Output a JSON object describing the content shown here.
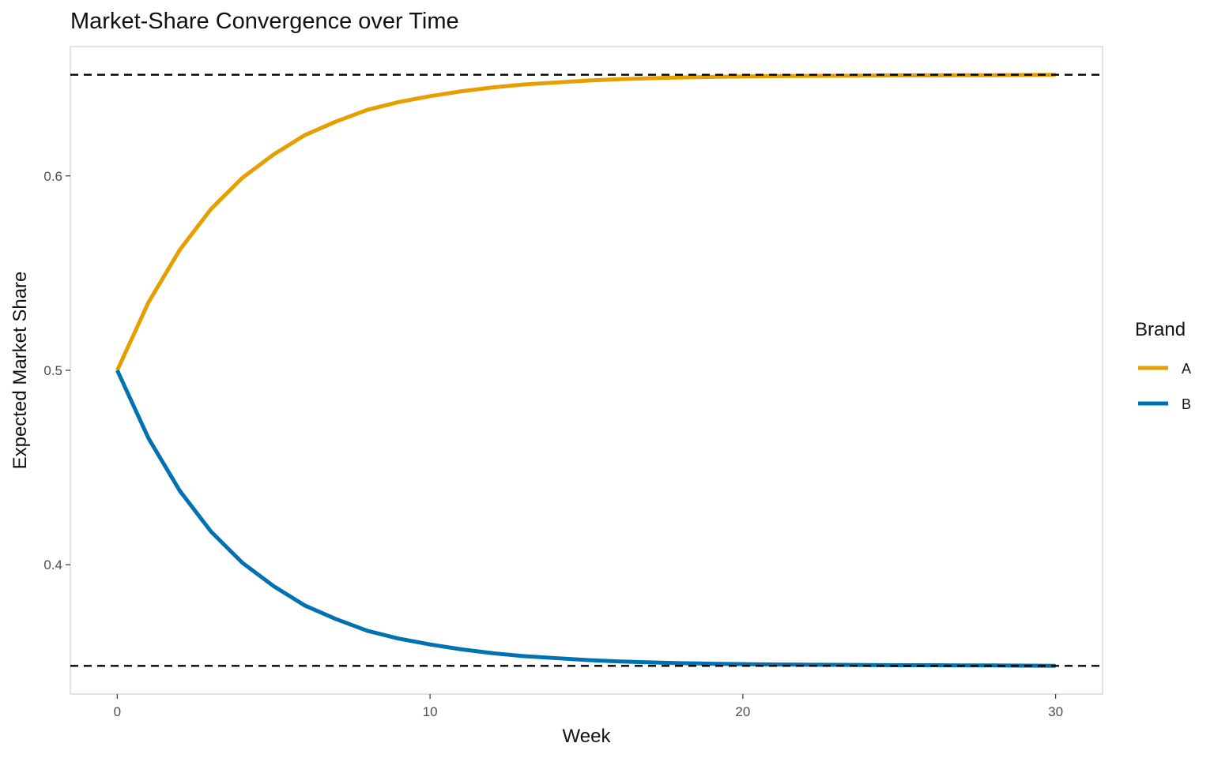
{
  "chart_data": {
    "type": "line",
    "title": "Market-Share Convergence over Time",
    "xlabel": "Week",
    "ylabel": "Expected Market Share",
    "xlim": [
      -1.5,
      31.5
    ],
    "ylim": [
      0.3335,
      0.6665
    ],
    "x_ticks": [
      0,
      10,
      20,
      30
    ],
    "x_tick_labels": [
      "0",
      "10",
      "20",
      "30"
    ],
    "y_ticks": [
      0.4,
      0.5,
      0.6
    ],
    "y_tick_labels": [
      "0.4",
      "0.5",
      "0.6"
    ],
    "grid": false,
    "legend": {
      "title": "Brand",
      "position": "right"
    },
    "reference_lines": [
      {
        "y": 0.652,
        "style": "dashed",
        "color": "#000000"
      },
      {
        "y": 0.348,
        "style": "dashed",
        "color": "#000000"
      }
    ],
    "x": [
      0,
      1,
      2,
      3,
      4,
      5,
      6,
      7,
      8,
      9,
      10,
      11,
      12,
      13,
      14,
      15,
      16,
      17,
      18,
      19,
      20,
      21,
      22,
      23,
      24,
      25,
      26,
      27,
      28,
      29,
      30
    ],
    "series": [
      {
        "name": "A",
        "color": "#E69F00",
        "values": [
          0.5,
          0.535,
          0.562,
          0.583,
          0.599,
          0.611,
          0.621,
          0.628,
          0.634,
          0.638,
          0.641,
          0.6435,
          0.6455,
          0.647,
          0.648,
          0.649,
          0.6497,
          0.6502,
          0.6506,
          0.6509,
          0.6511,
          0.6513,
          0.6514,
          0.6515,
          0.6516,
          0.6517,
          0.6517,
          0.6518,
          0.6518,
          0.6519,
          0.652
        ]
      },
      {
        "name": "B",
        "color": "#0072B2",
        "values": [
          0.5,
          0.465,
          0.438,
          0.417,
          0.401,
          0.389,
          0.379,
          0.372,
          0.366,
          0.362,
          0.359,
          0.3565,
          0.3545,
          0.353,
          0.352,
          0.351,
          0.3503,
          0.3498,
          0.3494,
          0.3491,
          0.3489,
          0.3487,
          0.3486,
          0.3485,
          0.3484,
          0.3483,
          0.3483,
          0.3482,
          0.3482,
          0.3481,
          0.348
        ]
      }
    ]
  }
}
